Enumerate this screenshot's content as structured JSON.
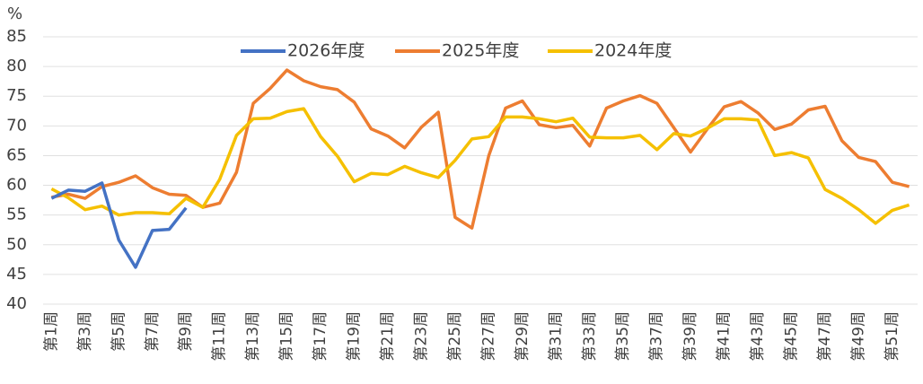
{
  "chart_data": {
    "type": "line",
    "y_axis_label": "%",
    "categories": [
      "第1周",
      null,
      "第3周",
      null,
      "第5周",
      null,
      "第7周",
      null,
      "第9周",
      null,
      "第11周",
      null,
      "第13周",
      null,
      "第15周",
      null,
      "第17周",
      null,
      "第19周",
      null,
      "第21周",
      null,
      "第23周",
      null,
      "第25周",
      null,
      "第27周",
      null,
      "第29周",
      null,
      "第31周",
      null,
      "第33周",
      null,
      "第35周",
      null,
      "第37周",
      null,
      "第39周",
      null,
      "第41周",
      null,
      "第43周",
      null,
      "第45周",
      null,
      "第47周",
      null,
      "第49周",
      null,
      "第51周",
      null
    ],
    "series": [
      {
        "name": "2026年度",
        "color": "#4472c4",
        "values": [
          57.8,
          59.2,
          59.0,
          60.4,
          50.8,
          46.2,
          52.4,
          52.6,
          56.2,
          null,
          null,
          null,
          null,
          null,
          null,
          null,
          null,
          null,
          null,
          null,
          null,
          null,
          null,
          null,
          null,
          null,
          null,
          null,
          null,
          null,
          null,
          null,
          null,
          null,
          null,
          null,
          null,
          null,
          null,
          null,
          null,
          null,
          null,
          null,
          null,
          null,
          null,
          null,
          null,
          null,
          null,
          null
        ]
      },
      {
        "name": "2025年度",
        "color": "#ed7d31",
        "values": [
          58.0,
          58.5,
          57.8,
          59.8,
          60.5,
          61.6,
          59.6,
          58.5,
          58.3,
          56.3,
          57.0,
          62.2,
          73.8,
          76.3,
          79.4,
          77.6,
          76.6,
          76.1,
          74.0,
          69.5,
          68.3,
          66.3,
          69.8,
          72.3,
          54.6,
          52.8,
          65.0,
          73.0,
          74.2,
          70.2,
          69.7,
          70.1,
          66.6,
          73.0,
          74.2,
          75.1,
          73.8,
          69.7,
          65.6,
          69.5,
          73.2,
          74.1,
          72.2,
          69.4,
          70.3,
          72.7,
          73.3,
          67.5,
          64.7,
          64.0,
          60.5,
          59.8
        ]
      },
      {
        "name": "2024年度",
        "color": "#f5c000",
        "values": [
          59.4,
          57.9,
          55.9,
          56.5,
          55.0,
          55.4,
          55.4,
          55.2,
          57.8,
          56.3,
          61.0,
          68.4,
          71.2,
          71.3,
          72.4,
          72.9,
          68.2,
          64.9,
          60.6,
          62.0,
          61.8,
          63.2,
          62.1,
          61.3,
          64.2,
          67.8,
          68.2,
          71.5,
          71.5,
          71.2,
          70.7,
          71.3,
          68.1,
          68.0,
          68.0,
          68.4,
          66.0,
          68.7,
          68.3,
          69.6,
          71.2,
          71.2,
          71.0,
          65.0,
          65.5,
          64.6,
          59.3,
          57.8,
          55.9,
          53.6,
          55.8,
          56.7
        ]
      }
    ],
    "ylim": [
      40,
      85
    ],
    "yticks": [
      40,
      45,
      50,
      55,
      60,
      65,
      70,
      75,
      80,
      85
    ],
    "grid": true,
    "legend": "top"
  }
}
